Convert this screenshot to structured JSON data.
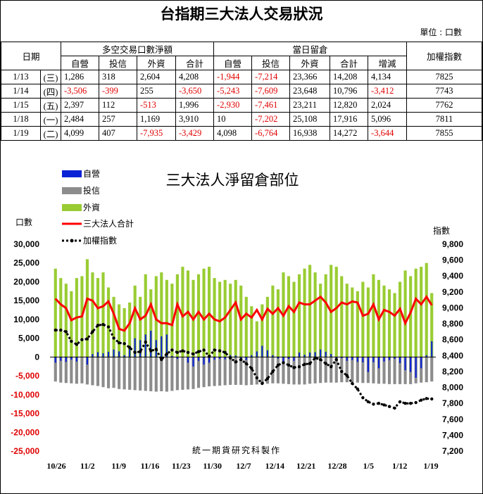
{
  "title": "台指期三大法人交易狀況",
  "unit_note": "單位 : 口數",
  "table": {
    "date_header": "日期",
    "group1": "多空交易口數淨額",
    "group2": "當日留倉",
    "index_header": "加權指數",
    "sub1": [
      "自營",
      "投信",
      "外資",
      "合計"
    ],
    "sub2": [
      "自營",
      "投信",
      "外資",
      "合計",
      "增減"
    ],
    "rows": [
      {
        "date": "1/13",
        "wd": "(三)",
        "v": [
          "1,286",
          "318",
          "2,604",
          "4,208",
          "-1,944",
          "-7,214",
          "23,366",
          "14,208",
          "4,134"
        ],
        "idx": "7825"
      },
      {
        "date": "1/14",
        "wd": "(四)",
        "v": [
          "-3,506",
          "-399",
          "255",
          "-3,650",
          "-5,243",
          "-7,609",
          "23,648",
          "10,796",
          "-3,412"
        ],
        "idx": "7743"
      },
      {
        "date": "1/15",
        "wd": "(五)",
        "v": [
          "2,397",
          "112",
          "-513",
          "1,996",
          "-2,930",
          "-7,461",
          "23,211",
          "12,820",
          "2,024"
        ],
        "idx": "7762"
      },
      {
        "date": "1/18",
        "wd": "(一)",
        "v": [
          "2,484",
          "257",
          "1,169",
          "3,910",
          "10",
          "-7,202",
          "25,108",
          "17,916",
          "5,096"
        ],
        "idx": "7811"
      },
      {
        "date": "1/19",
        "wd": "(二)",
        "v": [
          "4,099",
          "407",
          "-7,935",
          "-3,429",
          "4,098",
          "-6,764",
          "16,938",
          "14,272",
          "-3,644"
        ],
        "idx": "7855"
      }
    ]
  },
  "chart_data": {
    "type": "bar",
    "title": "三大法人淨留倉部位",
    "ylabel_left": "口數",
    "ylabel_right": "指數",
    "credit": "統一期貨研究科製作",
    "ylim_left": [
      -25000,
      30000
    ],
    "yticks_left": [
      "30,000",
      "25,000",
      "20,000",
      "15,000",
      "10,000",
      "5,000",
      "0",
      "-5,000",
      "-10,000",
      "-15,000",
      "-20,000",
      "-25,000"
    ],
    "ylim_right": [
      7200,
      9800
    ],
    "yticks_right": [
      "9,800",
      "9,600",
      "9,400",
      "9,200",
      "9,000",
      "8,800",
      "8,600",
      "8,400",
      "8,200",
      "8,000",
      "7,800",
      "7,600",
      "7,400",
      "7,200"
    ],
    "x_tick_labels": [
      "10/26",
      "11/2",
      "11/9",
      "11/16",
      "11/23",
      "11/30",
      "12/7",
      "12/14",
      "12/21",
      "12/28",
      "1/5",
      "1/12",
      "1/19"
    ],
    "legend": [
      "自營",
      "投信",
      "外資",
      "三大法人合計",
      "加權指數"
    ],
    "colors": {
      "dealer": "#0a22d6",
      "trust": "#8c8c8c",
      "foreign": "#99cc33",
      "total": "#ff0000",
      "index": "#000000"
    },
    "series": {
      "dealer": [
        -1500,
        -1000,
        -1300,
        -700,
        -1200,
        0,
        -2000,
        800,
        1300,
        1000,
        1400,
        2000,
        1500,
        500,
        3000,
        5000,
        4500,
        6000,
        7000,
        4500,
        5500,
        6000,
        300,
        -500,
        0,
        -1500,
        -2500,
        -1000,
        -2000,
        -1500,
        -700,
        -500,
        -600,
        500,
        400,
        -400,
        -800,
        500,
        1500,
        3000,
        1800,
        500,
        -400,
        -1500,
        -500,
        -1000,
        1200,
        600,
        1200,
        1300,
        2000,
        1400,
        800,
        -500,
        -300,
        -1000,
        -800,
        -1300,
        -1400,
        -4000,
        -1400,
        -3000,
        -1200,
        -800,
        -500,
        -1600,
        -3500,
        -4000,
        -5500,
        -3000,
        500,
        4200
      ],
      "trust": [
        -6500,
        -6800,
        -6900,
        -7000,
        -7100,
        -7000,
        -7300,
        -7500,
        -7700,
        -8000,
        -8300,
        -8200,
        -8500,
        -8600,
        -8700,
        -8800,
        -8900,
        -9000,
        -9100,
        -9200,
        -9100,
        -9200,
        -9000,
        -8800,
        -8700,
        -8600,
        -8500,
        -8200,
        -8000,
        -7800,
        -7700,
        -7600,
        -7500,
        -7400,
        -7400,
        -7400,
        -7500,
        -7400,
        -7300,
        -7200,
        -7100,
        -7000,
        -7000,
        -7100,
        -7200,
        -7300,
        -7300,
        -7300,
        -7100,
        -7000,
        -6900,
        -6800,
        -6800,
        -6800,
        -6700,
        -6700,
        -6700,
        -6800,
        -6900,
        -6900,
        -7000,
        -7100,
        -7100,
        -7200,
        -7200,
        -7200,
        -7200,
        -7200,
        -7000,
        -6800,
        -6700,
        -6500
      ],
      "foreign": [
        23500,
        21000,
        19500,
        17500,
        21000,
        21500,
        26000,
        22500,
        21000,
        22500,
        18500,
        16000,
        14000,
        13000,
        14500,
        19000,
        16000,
        22000,
        18000,
        21500,
        22500,
        20500,
        19500,
        22000,
        24000,
        23000,
        20500,
        22000,
        23500,
        24000,
        21000,
        20000,
        20500,
        19500,
        20500,
        19000,
        16000,
        13500,
        9500,
        14000,
        16000,
        19000,
        18000,
        22500,
        21500,
        20000,
        22000,
        23500,
        24500,
        22500,
        19500,
        22000,
        24500,
        24000,
        21500,
        19500,
        18500,
        17500,
        20000,
        18500,
        22000,
        20500,
        19000,
        18000,
        17000,
        20000,
        23000,
        21500,
        23500,
        24000,
        25000,
        17000
      ],
      "total": [
        15500,
        14000,
        13000,
        9800,
        10500,
        10800,
        15500,
        15000,
        13000,
        13500,
        14800,
        11500,
        7500,
        7000,
        9000,
        13000,
        10000,
        11000,
        14000,
        10000,
        9000,
        9000,
        8500,
        14000,
        10800,
        12000,
        10000,
        12000,
        10000,
        11500,
        10000,
        9500,
        10500,
        12500,
        14500,
        10000,
        11500,
        10500,
        12500,
        10000,
        12800,
        11500,
        13000,
        11000,
        13500,
        12000,
        14500,
        14000,
        14000,
        15000,
        16000,
        14500,
        12000,
        13000,
        14500,
        14000,
        14800,
        14500,
        11000,
        11500,
        14000,
        10000,
        12500,
        12000,
        11000,
        12800,
        9000,
        11800,
        15500,
        14000,
        16000,
        13800
      ],
      "index": [
        8720,
        8720,
        8700,
        8580,
        8540,
        8600,
        8610,
        8700,
        8780,
        8790,
        8760,
        8620,
        8560,
        8550,
        8500,
        8440,
        8450,
        8570,
        8460,
        8480,
        8350,
        8420,
        8470,
        8440,
        8460,
        8440,
        8420,
        8450,
        8470,
        8390,
        8470,
        8460,
        8440,
        8370,
        8320,
        8350,
        8300,
        8240,
        8120,
        8050,
        8110,
        8200,
        8280,
        8310,
        8280,
        8250,
        8260,
        8290,
        8300,
        8370,
        8350,
        8300,
        8260,
        8350,
        8200,
        8150,
        8050,
        7980,
        7870,
        7820,
        7790,
        7800,
        7780,
        7760,
        7740,
        7820,
        7800,
        7800,
        7810,
        7840,
        7860,
        7855
      ]
    }
  }
}
